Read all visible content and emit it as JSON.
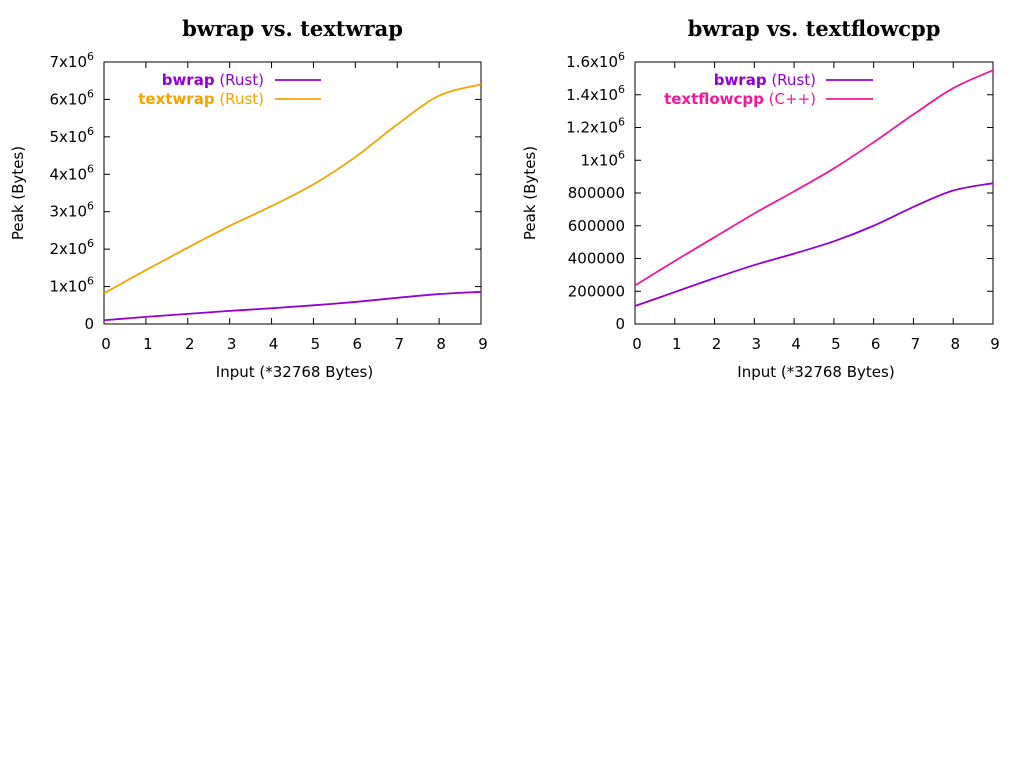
{
  "colors": {
    "bwrap": "#9400d3",
    "textwrap": "#f5a300",
    "textflowcpp": "#f0189a",
    "axis": "#000000"
  },
  "chart_data": [
    {
      "type": "line",
      "title": "bwrap vs. textwrap",
      "xlabel": "Input (*32768 Bytes)",
      "ylabel": "Peak (Bytes)",
      "xlim": [
        0,
        9
      ],
      "ylim": [
        0,
        7000000
      ],
      "x_ticks": [
        0,
        1,
        2,
        3,
        4,
        5,
        6,
        7,
        8,
        9
      ],
      "y_ticks": [
        {
          "value": 0,
          "base": "0",
          "exp": ""
        },
        {
          "value": 1000000,
          "base": "1x10",
          "exp": "6"
        },
        {
          "value": 2000000,
          "base": "2x10",
          "exp": "6"
        },
        {
          "value": 3000000,
          "base": "3x10",
          "exp": "6"
        },
        {
          "value": 4000000,
          "base": "4x10",
          "exp": "6"
        },
        {
          "value": 5000000,
          "base": "5x10",
          "exp": "6"
        },
        {
          "value": 6000000,
          "base": "6x10",
          "exp": "6"
        },
        {
          "value": 7000000,
          "base": "7x10",
          "exp": "6"
        }
      ],
      "grid": false,
      "legend_position": "top-left",
      "series": [
        {
          "key": "bwrap",
          "name": "bwrap",
          "lang": "(Rust)",
          "color_key": "bwrap",
          "x": [
            0,
            1,
            2,
            3,
            4,
            5,
            6,
            7,
            8,
            9
          ],
          "y": [
            100000,
            190000,
            270000,
            350000,
            420000,
            500000,
            590000,
            700000,
            800000,
            860000
          ]
        },
        {
          "key": "textwrap",
          "name": "textwrap",
          "lang": "(Rust)",
          "color_key": "textwrap",
          "x": [
            0,
            1,
            2,
            3,
            4,
            5,
            6,
            7,
            8,
            9
          ],
          "y": [
            820000,
            1440000,
            2040000,
            2620000,
            3150000,
            3730000,
            4460000,
            5330000,
            6100000,
            6400000
          ]
        }
      ]
    },
    {
      "type": "line",
      "title": "bwrap vs. textflowcpp",
      "xlabel": "Input (*32768 Bytes)",
      "ylabel": "Peak (Bytes)",
      "xlim": [
        0,
        9
      ],
      "ylim": [
        0,
        1600000
      ],
      "x_ticks": [
        0,
        1,
        2,
        3,
        4,
        5,
        6,
        7,
        8,
        9
      ],
      "y_ticks": [
        {
          "value": 0,
          "base": "0",
          "exp": ""
        },
        {
          "value": 200000,
          "base": "200000",
          "exp": ""
        },
        {
          "value": 400000,
          "base": "400000",
          "exp": ""
        },
        {
          "value": 600000,
          "base": "600000",
          "exp": ""
        },
        {
          "value": 800000,
          "base": "800000",
          "exp": ""
        },
        {
          "value": 1000000,
          "base": "1x10",
          "exp": "6"
        },
        {
          "value": 1200000,
          "base": "1.2x10",
          "exp": "6"
        },
        {
          "value": 1400000,
          "base": "1.4x10",
          "exp": "6"
        },
        {
          "value": 1600000,
          "base": "1.6x10",
          "exp": "6"
        }
      ],
      "grid": false,
      "legend_position": "top-left",
      "series": [
        {
          "key": "bwrap",
          "name": "bwrap",
          "lang": "(Rust)",
          "color_key": "bwrap",
          "x": [
            0,
            1,
            2,
            3,
            4,
            5,
            6,
            7,
            8,
            9
          ],
          "y": [
            110000,
            195000,
            280000,
            360000,
            430000,
            505000,
            600000,
            715000,
            815000,
            860000
          ]
        },
        {
          "key": "textflowcpp",
          "name": "textflowcpp",
          "lang": "(C++)",
          "color_key": "textflowcpp",
          "x": [
            0,
            1,
            2,
            3,
            4,
            5,
            6,
            7,
            8,
            9
          ],
          "y": [
            235000,
            385000,
            530000,
            675000,
            810000,
            950000,
            1110000,
            1280000,
            1440000,
            1550000
          ]
        }
      ]
    }
  ]
}
